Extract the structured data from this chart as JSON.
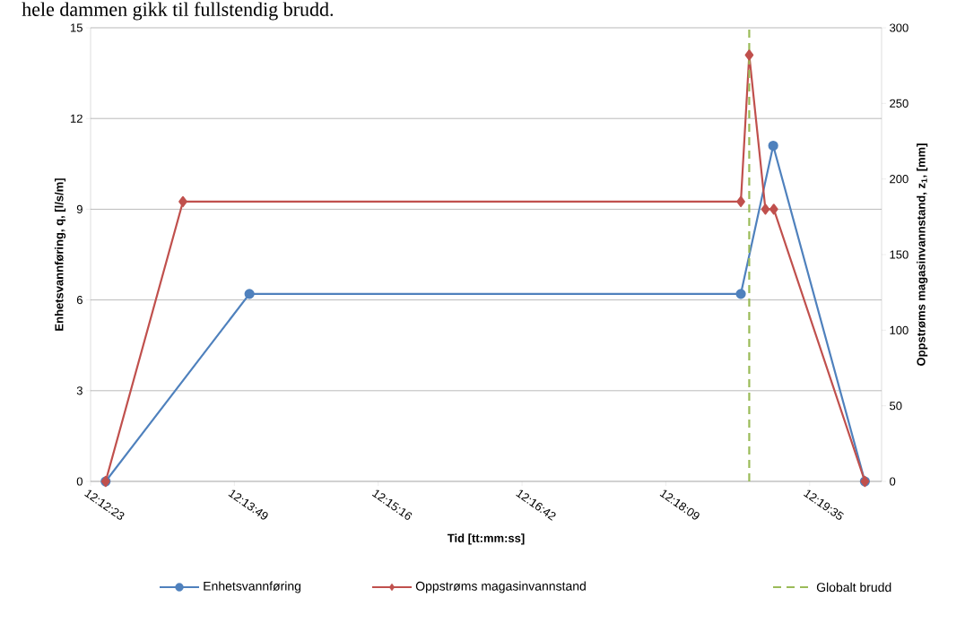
{
  "chart_data": {
    "type": "line",
    "annotations": [
      "hele dammen gikk til fullstendig brudd."
    ],
    "xlabel": "Tid [tt:mm:ss]",
    "ylabel": "Enhetsvannføring, q, [l/s/m]",
    "y2label": "Oppstrøms magasinvannstand, z$_{1}$, [mm]",
    "xlim": [
      12.206389,
      12.338389
    ],
    "xticks": [
      {
        "value": 12.206389,
        "label": "12:12:23"
      },
      {
        "value": 12.230389,
        "label": "12:13:49"
      },
      {
        "value": 12.254389,
        "label": "12:15:16"
      },
      {
        "value": 12.278389,
        "label": "12:16:42"
      },
      {
        "value": 12.302389,
        "label": "12:18:09"
      },
      {
        "value": 12.326389,
        "label": "12:19:35"
      }
    ],
    "ylim": [
      0,
      15
    ],
    "yticks": [
      0,
      3,
      6,
      9,
      12,
      15
    ],
    "y2lim": [
      0,
      300
    ],
    "y2ticks": [
      0,
      50,
      100,
      150,
      200,
      250,
      300
    ],
    "grid": "y",
    "legend": "bottom",
    "series": [
      {
        "name": "Enhetsvannføring",
        "color": "#4f81bd",
        "marker": "circle",
        "x": [
          12.2089,
          12.2329,
          12.3149,
          12.3203,
          12.3356
        ],
        "values": [
          0,
          6.2,
          6.2,
          11.1,
          0
        ]
      },
      {
        "name": "Oppstrøms magasinvannstand",
        "color": "#c0504d",
        "marker": "diamond",
        "axis": "y2",
        "x": [
          12.2089,
          12.2218,
          12.3149,
          12.3163,
          12.319,
          12.3204,
          12.3356
        ],
        "values": [
          0,
          185,
          185,
          282,
          180,
          180,
          0
        ]
      }
    ],
    "ref_lines": [
      {
        "axis": "x",
        "value": 12.3163,
        "label": "Globalt brudd",
        "color": "#9bbb59",
        "line_style": "dashed"
      }
    ]
  }
}
